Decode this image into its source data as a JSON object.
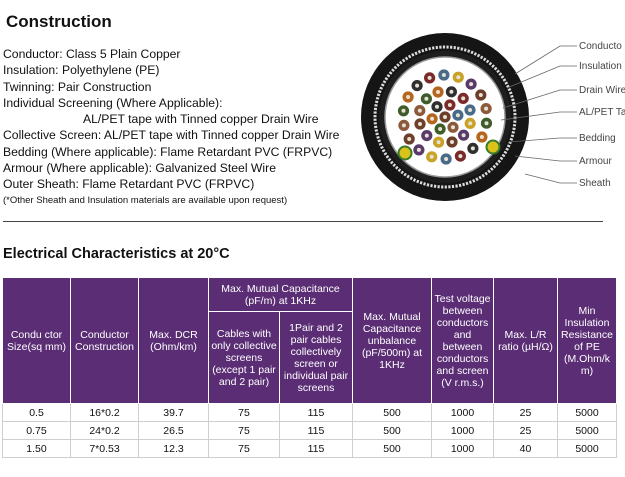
{
  "construction": {
    "heading": "Construction",
    "lines": [
      "Conductor: Class 5 Plain Copper",
      "Insulation: Polyethylene (PE)",
      "Twinning: Pair Construction",
      "Individual Screening (Where Applicable):",
      "AL/PET tape with Tinned copper Drain Wire",
      "Collective Screen: AL/PET tape with Tinned copper Drain Wire",
      "Bedding (Where applicable): Flame Retardant PVC (FRPVC)",
      "Armour (Where applicable): Galvanized Steel Wire",
      "Outer Sheath: Flame Retardant PVC (FRPVC)"
    ],
    "note": "(*Other Sheath and Insulation materials are available upon request)"
  },
  "diagram": {
    "labels": [
      "Conducto",
      "Insulation",
      "Drain Wire",
      "AL/PET Ta",
      "Bedding",
      "Armour",
      "Sheath"
    ]
  },
  "electrical": {
    "heading": "Electrical Characteristics at 20°C",
    "headers": {
      "size": "Condu ctor Size(sq mm)",
      "construction": "Conductor Construction",
      "dcr": "Max. DCR (Ohm/km)",
      "capacitance_group": "Max. Mutual Capacitance (pF/m) at 1KHz",
      "cap_sub1": "Cables with only collective screens (except 1 pair and 2 pair)",
      "cap_sub2": "1Pair and 2 pair cables collectively screen or individual pair screens",
      "unbalance": "Max. Mutual Capacitance unbalance (pF/500m) at 1KHz",
      "test_voltage": "Test voltage between conductors and between conductors and screen (V r.m.s.)",
      "lr_ratio": "Max. L/R ratio (µH/Ω)",
      "insulation": "Min Insulation Resistance of PE (M.Ohm/k m)"
    },
    "rows": [
      [
        "0.5",
        "16*0.2",
        "39.7",
        "75",
        "115",
        "500",
        "1000",
        "25",
        "5000"
      ],
      [
        "0.75",
        "24*0.2",
        "26.5",
        "75",
        "115",
        "500",
        "1000",
        "25",
        "5000"
      ],
      [
        "1.50",
        "7*0.53",
        "12.3",
        "75",
        "115",
        "500",
        "1000",
        "40",
        "5000"
      ]
    ]
  }
}
